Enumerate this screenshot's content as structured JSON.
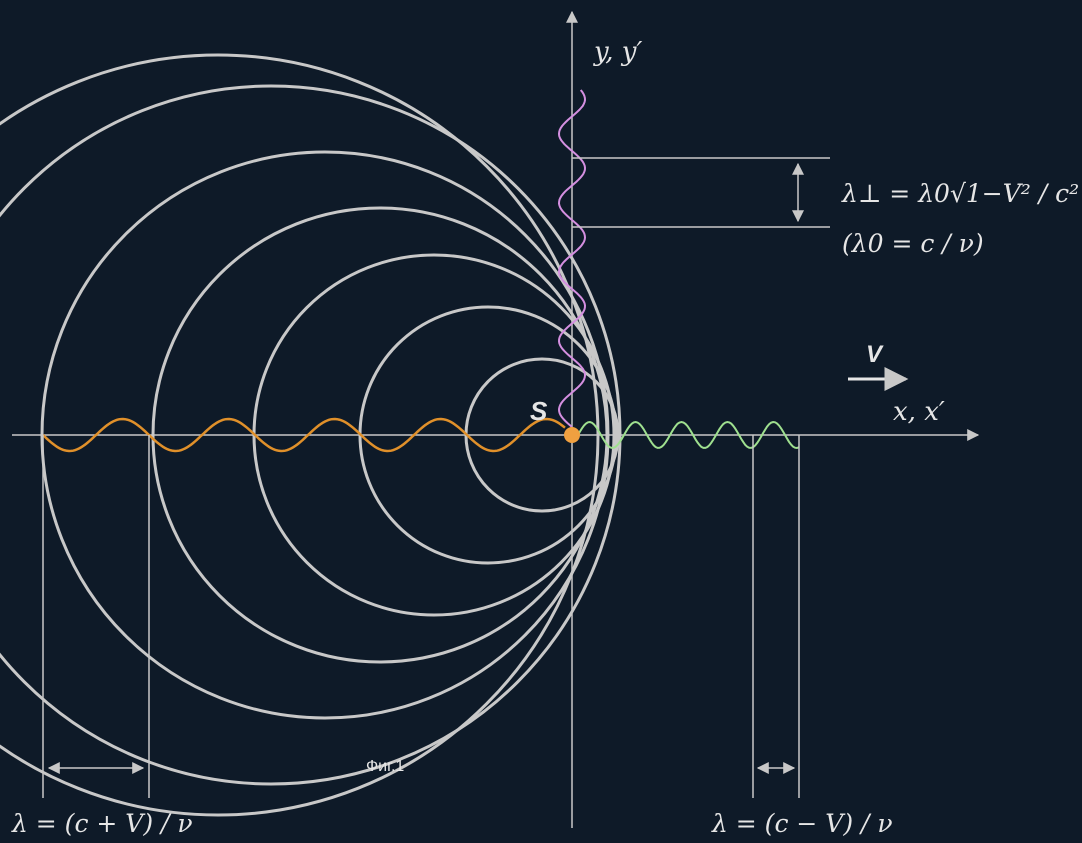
{
  "colors": {
    "background": "#0e1a28",
    "circle": "#c8c8c8",
    "axis": "#c8c8c8",
    "wave_left": "#e0902a",
    "wave_right": "#9fe08f",
    "wave_up": "#d48fe0",
    "source": "#f0a040",
    "text": "#e6e6e6"
  },
  "labels": {
    "y_axis": "y, y′",
    "x_axis": "x, x′",
    "source": "S",
    "velocity": "V",
    "figure": "Фиг.1",
    "lambda_perp": "λ⊥ = λ0√1−V² / c²",
    "lambda_zero": "(λ0 = c / ν)",
    "lambda_left": "λ = (c + V) / ν",
    "lambda_right": "λ = (c − V) / ν"
  }
}
